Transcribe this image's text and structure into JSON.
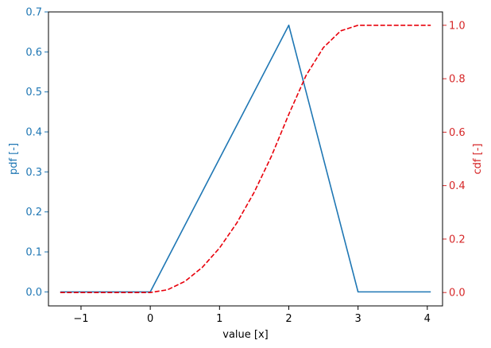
{
  "chart_data": {
    "type": "line",
    "title": "",
    "xlabel": "value [x]",
    "ylabel_left": "pdf [-]",
    "ylabel_right": "cdf [-]",
    "xlim": [
      -1.47,
      4.22
    ],
    "ylim_left": [
      -0.035,
      0.7
    ],
    "ylim_right": [
      -0.05,
      1.05
    ],
    "x_ticks": [
      -1,
      0,
      1,
      2,
      3,
      4
    ],
    "x_tick_labels": [
      "−1",
      "0",
      "1",
      "2",
      "3",
      "4"
    ],
    "y_ticks_left": [
      0.0,
      0.1,
      0.2,
      0.3,
      0.4,
      0.5,
      0.6,
      0.7
    ],
    "y_tick_labels_left": [
      "0.0",
      "0.1",
      "0.2",
      "0.3",
      "0.4",
      "0.5",
      "0.6",
      "0.7"
    ],
    "y_ticks_right": [
      0.0,
      0.2,
      0.4,
      0.6,
      0.8,
      1.0
    ],
    "y_tick_labels_right": [
      "0.0",
      "0.2",
      "0.4",
      "0.6",
      "0.8",
      "1.0"
    ],
    "grid": false,
    "legend": "none",
    "series": [
      {
        "axis": "left",
        "style": "solid",
        "color": "#1f77b4",
        "x": [
          -1.3,
          0.0,
          2.0,
          3.0,
          4.05
        ],
        "y": [
          0.0,
          0.0,
          0.6667,
          0.0,
          0.0
        ]
      },
      {
        "axis": "right",
        "style": "dashed",
        "color": "#e8000b",
        "x": [
          -1.3,
          0.0,
          0.25,
          0.5,
          0.75,
          1.0,
          1.25,
          1.5,
          1.75,
          2.0,
          2.25,
          2.5,
          2.75,
          3.0,
          3.5,
          4.05
        ],
        "y": [
          0.0,
          0.0,
          0.0104,
          0.0417,
          0.0938,
          0.1667,
          0.2604,
          0.375,
          0.5104,
          0.6667,
          0.8125,
          0.9167,
          0.9792,
          1.0,
          1.0,
          1.0
        ]
      }
    ],
    "colors": {
      "left_axis": "#1f77b4",
      "right_axis": "#d62728"
    }
  }
}
